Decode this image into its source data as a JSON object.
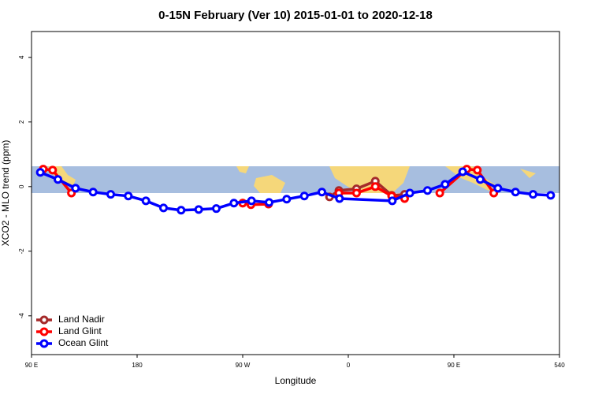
{
  "chart_data": {
    "type": "line",
    "title": "0-15N February (Ver 10)   2015-01-01 to 2020-12-18",
    "xlabel": "Longitude",
    "ylabel": "XCO2 - MLO trend (ppm)",
    "xlim": [
      90,
      540
    ],
    "ylim": [
      -5.2,
      4.8
    ],
    "xticks": [
      {
        "value": 90,
        "label": "90 E"
      },
      180,
      {
        "value": 270,
        "label": "90 W"
      },
      {
        "value": 360,
        "label": "0"
      },
      {
        "value": 450,
        "label": "90 E"
      },
      540
    ],
    "yticks": [
      -4,
      -2,
      0,
      2,
      4
    ],
    "legend": "bottom-left",
    "series": [
      {
        "name": "Land Nadir",
        "color": "#a52a2a",
        "x": [
          270,
          310,
          344,
          352,
          367,
          383,
          397,
          408
        ],
        "values": [
          -0.51,
          null,
          -0.32,
          -0.12,
          -0.07,
          0.17,
          -0.27,
          -0.24
        ]
      },
      {
        "name": "Land Glint",
        "color": "#ff0000",
        "x": [
          100,
          108,
          124,
          200,
          270,
          277,
          292,
          320,
          352,
          367,
          383,
          397,
          408,
          420,
          438,
          461,
          470,
          484
        ],
        "values": [
          0.54,
          0.51,
          -0.2,
          null,
          -0.51,
          -0.56,
          -0.54,
          null,
          -0.2,
          -0.2,
          0,
          -0.29,
          -0.37,
          null,
          -0.2,
          0.54,
          0.51,
          -0.2
        ]
      },
      {
        "name": "Ocean Glint",
        "color": "#0000ff",
        "x": [
          97.5,
          112.5,
          127.5,
          142.5,
          157.5,
          172.5,
          187.5,
          202.5,
          217.5,
          232.5,
          247.5,
          262.5,
          277.5,
          292.5,
          307.5,
          322.5,
          337.5,
          352.5,
          397.5,
          412.5,
          427.5,
          442.5,
          457.5,
          472.5,
          487.5,
          502.5,
          517.5,
          532.5
        ],
        "values": [
          0.44,
          0.22,
          -0.05,
          -0.17,
          -0.24,
          -0.29,
          -0.44,
          -0.66,
          -0.73,
          -0.71,
          -0.68,
          -0.51,
          -0.44,
          -0.49,
          -0.39,
          -0.29,
          -0.17,
          -0.37,
          -0.44,
          -0.2,
          -0.12,
          0.07,
          0.46,
          0.22,
          -0.05,
          -0.17,
          -0.24,
          -0.27
        ]
      }
    ]
  }
}
